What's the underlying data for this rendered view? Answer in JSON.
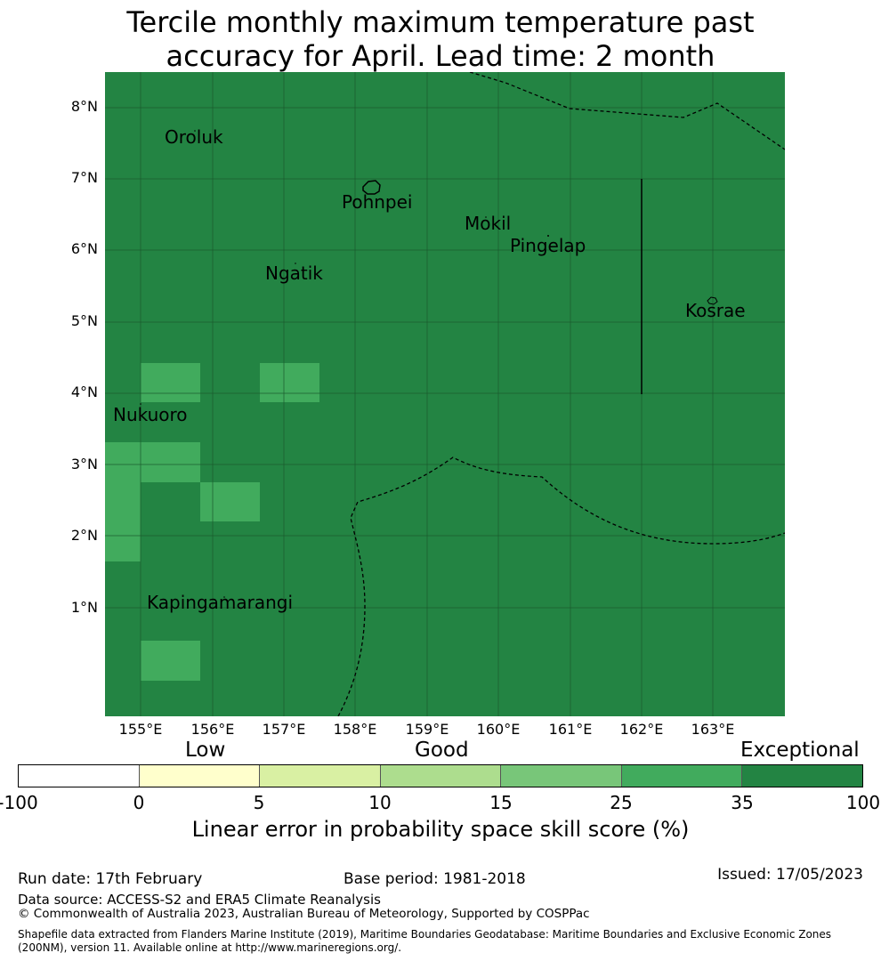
{
  "title": {
    "line1": "Tercile monthly maximum temperature past",
    "line2": "accuracy for April. Lead time: 2 month"
  },
  "map": {
    "lat_ticks": [
      "8°N",
      "7°N",
      "6°N",
      "5°N",
      "4°N",
      "3°N",
      "2°N",
      "1°N"
    ],
    "lon_ticks": [
      "155°E",
      "156°E",
      "157°E",
      "158°E",
      "159°E",
      "160°E",
      "161°E",
      "162°E",
      "163°E"
    ],
    "places": [
      "Oroluk",
      "Pohnpei",
      "Mokil",
      "Pingelap",
      "Ngatik",
      "Kosrae",
      "Nukuoro",
      "Kapingamarangi"
    ],
    "background_color": "#238443",
    "highlight_color": "#41ab5d",
    "boundary_style": "dashed"
  },
  "colorbar": {
    "categories": [
      "Low",
      "Good",
      "Exceptional"
    ],
    "ticks": [
      "-100",
      "0",
      "5",
      "10",
      "15",
      "25",
      "35",
      "100"
    ],
    "colors": [
      "#ffffff",
      "#ffffcc",
      "#d9f0a3",
      "#addd8e",
      "#78c679",
      "#41ab5d",
      "#238443"
    ],
    "label": "Linear error in probability space skill score (%)"
  },
  "footer": {
    "run_date": "Run date: 17th February",
    "base_period": "Base period: 1981-2018",
    "issued": "Issued: 17/05/2023",
    "data_source": "Data source: ACCESS-S2 and ERA5 Climate Reanalysis",
    "copyright": "© Commonwealth of Australia 2023, Australian Bureau of Meteorology, Supported by COSPPac",
    "shapefile": "Shapefile data extracted from Flanders Marine Institute (2019), Maritime Boundaries Geodatabase: Maritime Boundaries and Exclusive Economic Zones (200NM), version 11. Available online at http://www.marineregions.org/."
  }
}
